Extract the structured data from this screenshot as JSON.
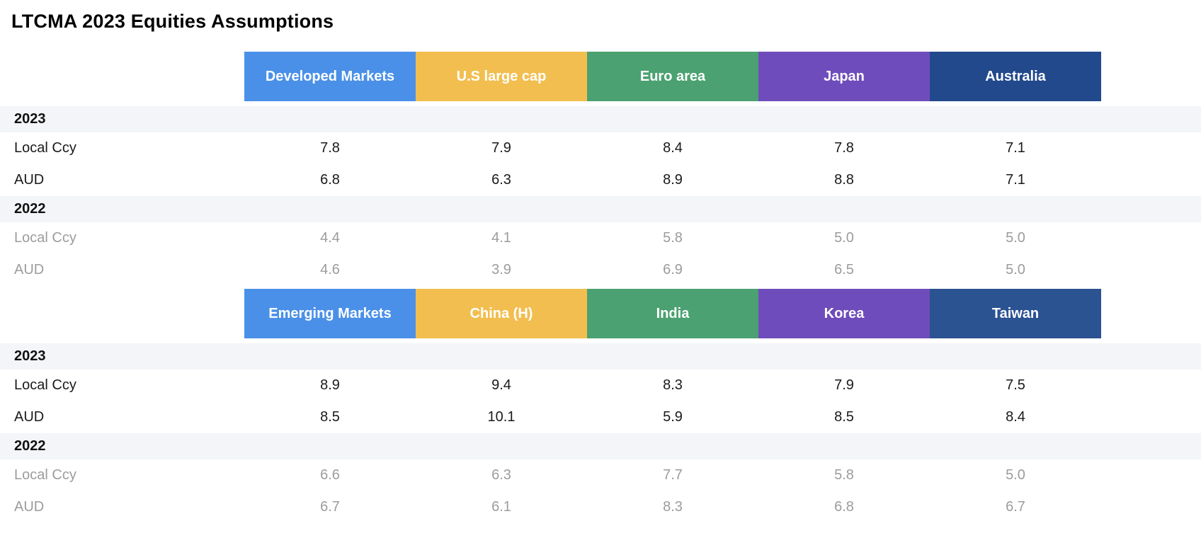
{
  "page": {
    "title": "LTCMA 2023 Equities Assumptions"
  },
  "table": {
    "sections": [
      {
        "name": "developed-markets",
        "columns": [
          {
            "label": "Developed Markets",
            "color": "#4a90e8"
          },
          {
            "label": "U.S large cap",
            "color": "#f2be4f"
          },
          {
            "label": "Euro area",
            "color": "#4ba171"
          },
          {
            "label": "Japan",
            "color": "#6f4cbb"
          },
          {
            "label": "Australia",
            "color": "#21498c"
          }
        ],
        "groups": [
          {
            "year": "2023",
            "muted": false,
            "rows": [
              {
                "label": "Local Ccy",
                "values": [
                  "7.8",
                  "7.9",
                  "8.4",
                  "7.8",
                  "7.1"
                ]
              },
              {
                "label": "AUD",
                "values": [
                  "6.8",
                  "6.3",
                  "8.9",
                  "8.8",
                  "7.1"
                ]
              }
            ]
          },
          {
            "year": "2022",
            "muted": true,
            "rows": [
              {
                "label": "Local Ccy",
                "values": [
                  "4.4",
                  "4.1",
                  "5.8",
                  "5.0",
                  "5.0"
                ]
              },
              {
                "label": "AUD",
                "values": [
                  "4.6",
                  "3.9",
                  "6.9",
                  "6.5",
                  "5.0"
                ]
              }
            ]
          }
        ]
      },
      {
        "name": "emerging-markets",
        "columns": [
          {
            "label": "Emerging Markets",
            "color": "#4a90e8"
          },
          {
            "label": "China (H)",
            "color": "#f2be4f"
          },
          {
            "label": "India",
            "color": "#4ba171"
          },
          {
            "label": "Korea",
            "color": "#6f4cbb"
          },
          {
            "label": "Taiwan",
            "color": "#2b5291"
          }
        ],
        "groups": [
          {
            "year": "2023",
            "muted": false,
            "rows": [
              {
                "label": "Local Ccy",
                "values": [
                  "8.9",
                  "9.4",
                  "8.3",
                  "7.9",
                  "7.5"
                ]
              },
              {
                "label": "AUD",
                "values": [
                  "8.5",
                  "10.1",
                  "5.9",
                  "8.5",
                  "8.4"
                ]
              }
            ]
          },
          {
            "year": "2022",
            "muted": true,
            "rows": [
              {
                "label": "Local Ccy",
                "values": [
                  "6.6",
                  "6.3",
                  "7.7",
                  "5.8",
                  "5.0"
                ]
              },
              {
                "label": "AUD",
                "values": [
                  "6.7",
                  "6.1",
                  "8.3",
                  "6.8",
                  "6.7"
                ]
              }
            ]
          }
        ]
      }
    ]
  },
  "chart_data": [
    {
      "type": "table",
      "title": "LTCMA 2023 Equities Assumptions — Developed Markets",
      "columns": [
        "Developed Markets",
        "U.S large cap",
        "Euro area",
        "Japan",
        "Australia"
      ],
      "rows": [
        {
          "group": "2023",
          "label": "Local Ccy",
          "values": [
            7.8,
            7.9,
            8.4,
            7.8,
            7.1
          ]
        },
        {
          "group": "2023",
          "label": "AUD",
          "values": [
            6.8,
            6.3,
            8.9,
            8.8,
            7.1
          ]
        },
        {
          "group": "2022",
          "label": "Local Ccy",
          "values": [
            4.4,
            4.1,
            5.8,
            5.0,
            5.0
          ]
        },
        {
          "group": "2022",
          "label": "AUD",
          "values": [
            4.6,
            3.9,
            6.9,
            6.5,
            5.0
          ]
        }
      ],
      "header_colors": [
        "#4a90e8",
        "#f2be4f",
        "#4ba171",
        "#6f4cbb",
        "#21498c"
      ]
    },
    {
      "type": "table",
      "title": "LTCMA 2023 Equities Assumptions — Emerging Markets",
      "columns": [
        "Emerging Markets",
        "China (H)",
        "India",
        "Korea",
        "Taiwan"
      ],
      "rows": [
        {
          "group": "2023",
          "label": "Local Ccy",
          "values": [
            8.9,
            9.4,
            8.3,
            7.9,
            7.5
          ]
        },
        {
          "group": "2023",
          "label": "AUD",
          "values": [
            8.5,
            10.1,
            5.9,
            8.5,
            8.4
          ]
        },
        {
          "group": "2022",
          "label": "Local Ccy",
          "values": [
            6.6,
            6.3,
            7.7,
            5.8,
            5.0
          ]
        },
        {
          "group": "2022",
          "label": "AUD",
          "values": [
            6.7,
            6.1,
            8.3,
            6.8,
            6.7
          ]
        }
      ],
      "header_colors": [
        "#4a90e8",
        "#f2be4f",
        "#4ba171",
        "#6f4cbb",
        "#2b5291"
      ]
    }
  ]
}
